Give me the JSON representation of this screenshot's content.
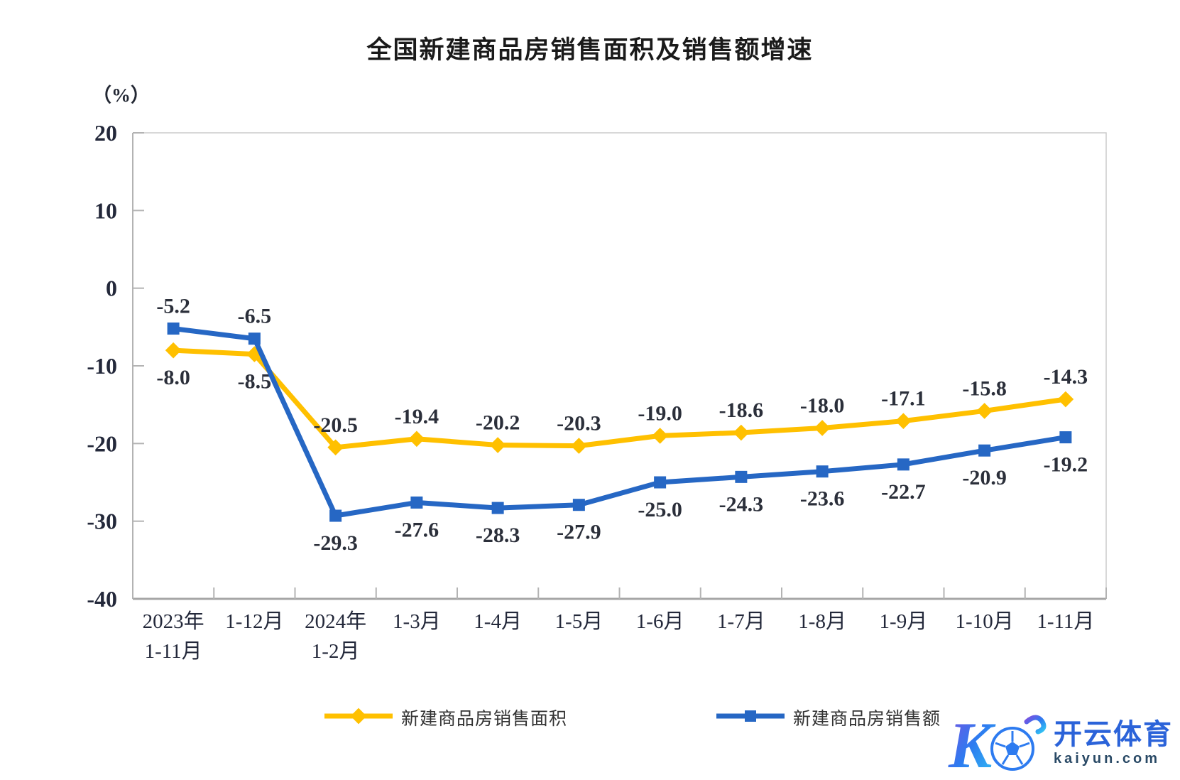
{
  "title": "全国新建商品房销售面积及销售额增速",
  "y_axis": {
    "unit": "（%）",
    "ticks": [
      20,
      10,
      0,
      -10,
      -20,
      -30,
      -40
    ],
    "max": 20,
    "min": -40
  },
  "chart_data": {
    "type": "line",
    "title": "全国新建商品房销售面积及销售额增速",
    "ylabel": "（%）",
    "ylim": [
      -40,
      20
    ],
    "grid": false,
    "legend_position": "bottom",
    "categories": [
      "2023年\n1-11月",
      "1-12月",
      "2024年\n1-2月",
      "1-3月",
      "1-4月",
      "1-5月",
      "1-6月",
      "1-7月",
      "1-8月",
      "1-9月",
      "1-10月",
      "1-11月"
    ],
    "series": [
      {
        "name": "新建商品房销售面积",
        "color": "#FFC000",
        "marker": "diamond",
        "values": [
          -8.0,
          -8.5,
          -20.5,
          -19.4,
          -20.2,
          -20.3,
          -19.0,
          -18.6,
          -18.0,
          -17.1,
          -15.8,
          -14.3
        ],
        "label_sides": [
          "below",
          "below",
          "above",
          "above",
          "above",
          "above",
          "above",
          "above",
          "above",
          "above",
          "above",
          "above"
        ]
      },
      {
        "name": "新建商品房销售额",
        "color": "#2667C4",
        "marker": "square",
        "values": [
          -5.2,
          -6.5,
          -29.3,
          -27.6,
          -28.3,
          -27.9,
          -25.0,
          -24.3,
          -23.6,
          -22.7,
          -20.9,
          -19.2
        ],
        "label_sides": [
          "above",
          "above",
          "below",
          "below",
          "below",
          "below",
          "below",
          "below",
          "below",
          "below",
          "below",
          "below"
        ]
      }
    ]
  },
  "watermark": {
    "logo_letter": "K",
    "brand": "开云体育",
    "domain": "kaiyun.com"
  }
}
